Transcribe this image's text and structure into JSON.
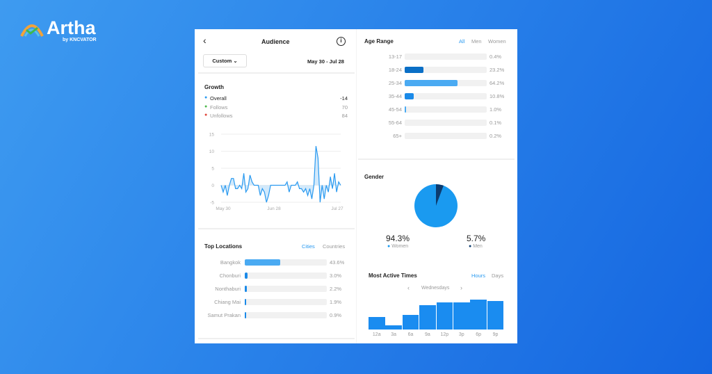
{
  "logo": {
    "name": "Artha",
    "byline": "by KNCVATOR"
  },
  "header": {
    "title": "Audience",
    "back_icon": "chevron-left-icon",
    "info_icon": "info-icon",
    "range_select": "Custom",
    "date_range": "May 30 - Jul 28"
  },
  "growth": {
    "title": "Growth",
    "legend": [
      {
        "label": "Overall",
        "value": "-14",
        "color": "#2a9af0"
      },
      {
        "label": "Follows",
        "value": "70",
        "color": "#4cb84c"
      },
      {
        "label": "Unfollows",
        "value": "84",
        "color": "#e0453a"
      }
    ]
  },
  "chart_data": {
    "type": "line",
    "y_ticks": [
      "15",
      "10",
      "5",
      "0",
      "-5"
    ],
    "ylim": [
      -5,
      15
    ],
    "x_ticks": [
      "May 30",
      "Jun 28",
      "Jul 27"
    ],
    "grid": true,
    "values": [
      0,
      -2,
      0,
      -3,
      0,
      2,
      2,
      -1,
      -1,
      0,
      -1,
      3.5,
      -2,
      -1,
      3,
      1,
      0,
      0,
      0,
      -3,
      -1,
      -2,
      -5,
      -3,
      0,
      0,
      0,
      0,
      0,
      0,
      0,
      0,
      1,
      -2,
      0,
      0,
      0,
      1,
      -1,
      -1,
      -2,
      -1,
      -3,
      -1,
      -4,
      0,
      11.5,
      8,
      -5,
      0,
      -4,
      0,
      -2,
      2.5,
      -1,
      3.5,
      -2,
      1,
      0
    ]
  },
  "locations": {
    "title": "Top Locations",
    "tabs": [
      "Cities",
      "Countries"
    ],
    "items": [
      {
        "name": "Bangkok",
        "pct": "43.6%",
        "value": 43.6
      },
      {
        "name": "Chonburi",
        "pct": "3.0%",
        "value": 3.0
      },
      {
        "name": "Nonthaburi",
        "pct": "2.2%",
        "value": 2.2
      },
      {
        "name": "Chiang Mai",
        "pct": "1.9%",
        "value": 1.9
      },
      {
        "name": "Samut Prakan",
        "pct": "0.9%",
        "value": 0.9
      }
    ]
  },
  "age": {
    "title": "Age Range",
    "tabs": [
      "All",
      "Men",
      "Women"
    ],
    "items": [
      {
        "range": "13-17",
        "pct": "0.4%",
        "value": 0.4,
        "color": "#2a9af0"
      },
      {
        "range": "18-24",
        "pct": "23.2%",
        "value": 23.2,
        "color": "#0a6fc6"
      },
      {
        "range": "25-34",
        "pct": "64.2%",
        "value": 64.2,
        "color": "#4aaaf2"
      },
      {
        "range": "35-44",
        "pct": "10.8%",
        "value": 10.8,
        "color": "#1b8ae8"
      },
      {
        "range": "45-54",
        "pct": "1.0%",
        "value": 1.0,
        "color": "#4aaaf2"
      },
      {
        "range": "55-64",
        "pct": "0.1%",
        "value": 0.1,
        "color": "#4aaaf2"
      },
      {
        "range": "65+",
        "pct": "0.2%",
        "value": 0.2,
        "color": "#4aaaf2"
      }
    ]
  },
  "gender": {
    "title": "Gender",
    "women": {
      "pct": "94.3%",
      "label": "Women",
      "value": 94.3,
      "color": "#1a9af0"
    },
    "men": {
      "pct": "5.7%",
      "label": "Men",
      "value": 5.7,
      "color": "#0d3b6e"
    }
  },
  "active": {
    "title": "Most Active Times",
    "tabs": [
      "Hours",
      "Days"
    ],
    "day": "Wednesdays",
    "labels": [
      "12a",
      "3a",
      "6a",
      "9a",
      "12p",
      "3p",
      "6p",
      "9p"
    ],
    "values": [
      15,
      5,
      18,
      30,
      33,
      33,
      37,
      35
    ],
    "color": "#1a8cf0"
  }
}
